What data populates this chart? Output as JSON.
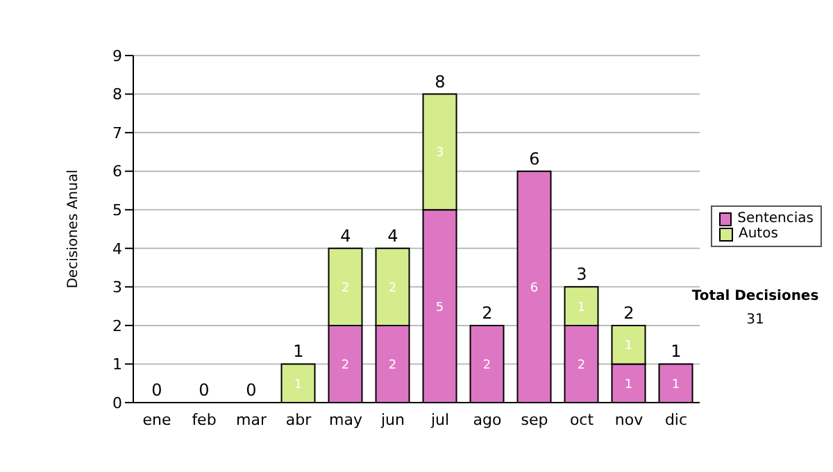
{
  "chart_data": {
    "type": "bar",
    "stacked": true,
    "ylabel": "Decisiones Anual",
    "categories": [
      "ene",
      "feb",
      "mar",
      "abr",
      "may",
      "jun",
      "jul",
      "ago",
      "sep",
      "oct",
      "nov",
      "dic"
    ],
    "series": [
      {
        "name": "Sentencias",
        "color": "#dd77c4",
        "values": [
          0,
          0,
          0,
          0,
          2,
          2,
          5,
          2,
          6,
          2,
          1,
          1
        ],
        "value_labels": [
          null,
          null,
          null,
          null,
          "2",
          "2",
          "5",
          "2",
          "6",
          "2",
          "1",
          "1"
        ]
      },
      {
        "name": "Autos",
        "color": "#d4ec8c",
        "values": [
          0,
          0,
          0,
          1,
          2,
          2,
          3,
          0,
          0,
          1,
          1,
          0
        ],
        "value_labels": [
          null,
          null,
          null,
          "1",
          "2",
          "2",
          "3",
          null,
          null,
          "1",
          "1",
          null
        ]
      }
    ],
    "totals": [
      "0",
      "0",
      "0",
      "1",
      "4",
      "4",
      "8",
      "2",
      "6",
      "3",
      "2",
      "1"
    ],
    "ylim": [
      0,
      9
    ],
    "yticks": [
      0,
      1,
      2,
      3,
      4,
      5,
      6,
      7,
      8,
      9
    ],
    "grid": "y",
    "legend": "right",
    "annotations": [
      "Total Decisiones",
      "31"
    ]
  }
}
